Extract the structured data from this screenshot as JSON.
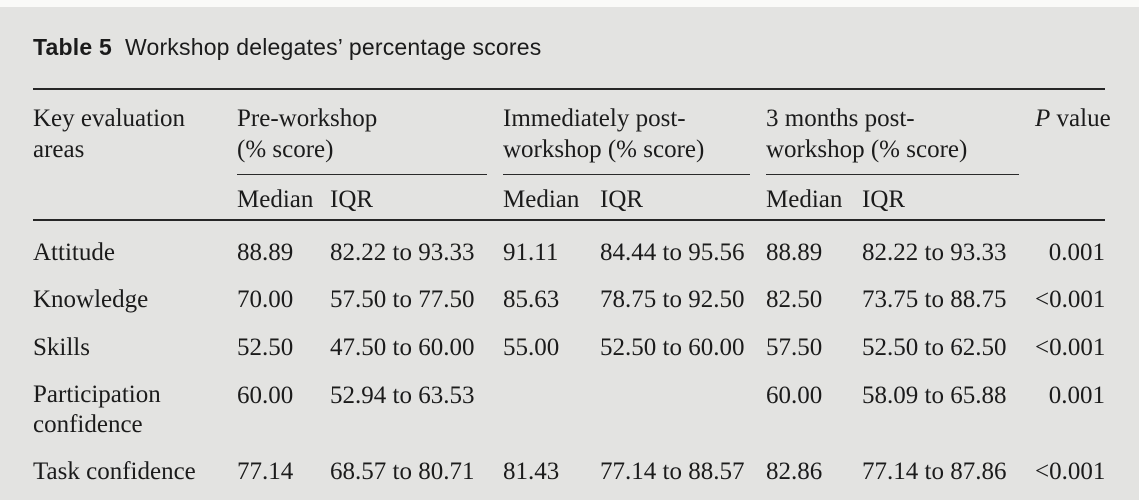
{
  "page": {
    "background": "#e3e3e1",
    "rule_color": "#262626",
    "text_color": "#1b1b1b"
  },
  "title": {
    "bold": "Table 5",
    "text": "Workshop delegates’ percentage scores"
  },
  "table": {
    "corner_header": "Key evaluation areas",
    "groups": [
      {
        "label": "Pre-workshop (% score)"
      },
      {
        "label": "Immediately post-workshop (% score)"
      },
      {
        "label": "3 months post-workshop (% score)"
      }
    ],
    "subheaders": {
      "median": "Median",
      "iqr": "IQR"
    },
    "p_header": {
      "italic": "P",
      "rest": " value"
    },
    "rows": [
      {
        "area": "Attitude",
        "pre_median": "88.89",
        "pre_iqr": "82.22 to 93.33",
        "post_median": "91.11",
        "post_iqr": "84.44 to 95.56",
        "m3_median": "88.89",
        "m3_iqr": "82.22 to 93.33",
        "p": "0.001"
      },
      {
        "area": "Knowledge",
        "pre_median": "70.00",
        "pre_iqr": "57.50 to 77.50",
        "post_median": "85.63",
        "post_iqr": "78.75 to 92.50",
        "m3_median": "82.50",
        "m3_iqr": "73.75 to 88.75",
        "p": "<0.001"
      },
      {
        "area": "Skills",
        "pre_median": "52.50",
        "pre_iqr": "47.50 to 60.00",
        "post_median": "55.00",
        "post_iqr": "52.50 to 60.00",
        "m3_median": "57.50",
        "m3_iqr": "52.50 to 62.50",
        "p": "<0.001"
      },
      {
        "area": "Participation confidence",
        "pre_median": "60.00",
        "pre_iqr": "52.94 to 63.53",
        "post_median": "",
        "post_iqr": "",
        "m3_median": "60.00",
        "m3_iqr": "58.09 to 65.88",
        "p": "0.001"
      },
      {
        "area": "Task confidence",
        "pre_median": "77.14",
        "pre_iqr": "68.57 to 80.71",
        "post_median": "81.43",
        "post_iqr": "77.14 to 88.57",
        "m3_median": "82.86",
        "m3_iqr": "77.14 to 87.86",
        "p": "<0.001"
      }
    ]
  }
}
